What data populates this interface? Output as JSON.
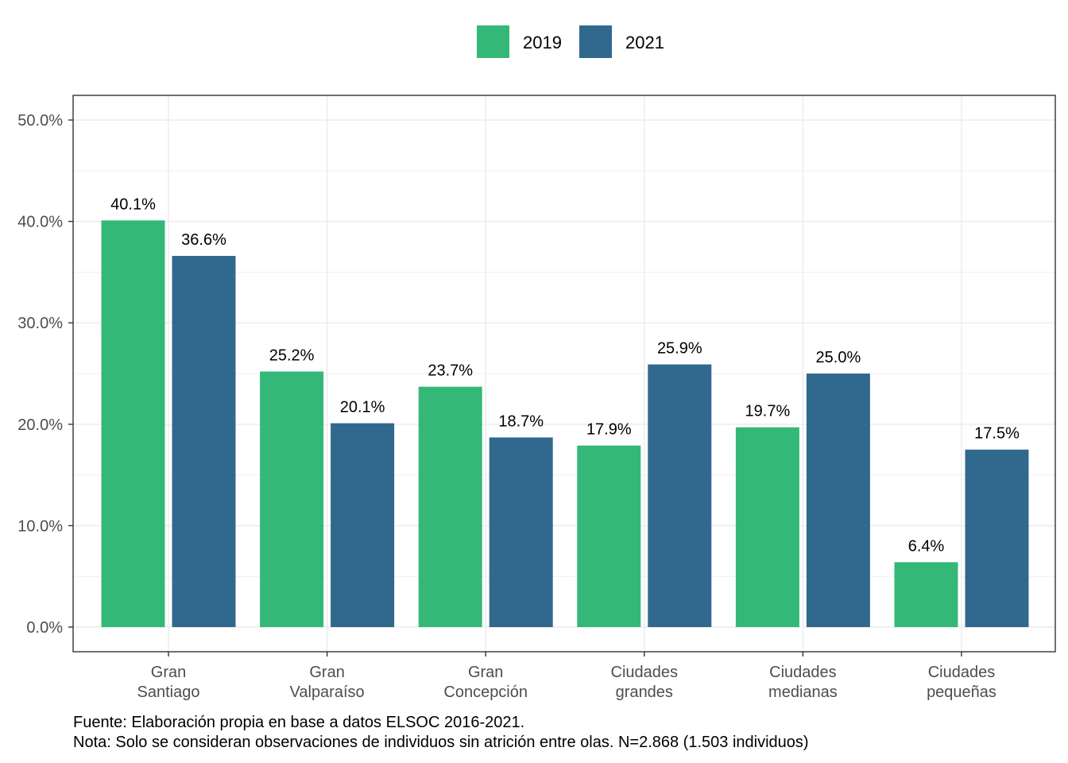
{
  "chart_data": {
    "type": "bar",
    "categories": [
      [
        "Gran",
        "Santiago"
      ],
      [
        "Gran",
        "Valparaíso"
      ],
      [
        "Gran",
        "Concepción"
      ],
      [
        "Ciudades",
        "grandes"
      ],
      [
        "Ciudades",
        "medianas"
      ],
      [
        "Ciudades",
        "pequeñas"
      ]
    ],
    "series": [
      {
        "name": "2019",
        "color": "#33b878",
        "values": [
          40.1,
          25.2,
          23.7,
          17.9,
          19.7,
          6.4
        ]
      },
      {
        "name": "2021",
        "color": "#31688e",
        "values": [
          36.6,
          20.1,
          18.7,
          25.9,
          25.0,
          17.5
        ]
      }
    ],
    "ylim": [
      0,
      52.5
    ],
    "yticks": [
      0,
      10,
      20,
      30,
      40,
      50
    ],
    "ytick_labels": [
      "0.0%",
      "10.0%",
      "20.0%",
      "30.0%",
      "40.0%",
      "50.0%"
    ],
    "value_suffix": "%",
    "grid": true,
    "legend_position": "top"
  },
  "caption": {
    "source": "Fuente: Elaboración propia en base a datos ELSOC 2016-2021.",
    "note": "Nota: Solo se consideran observaciones de individuos sin atrición entre olas. N=2.868 (1.503 individuos)"
  }
}
